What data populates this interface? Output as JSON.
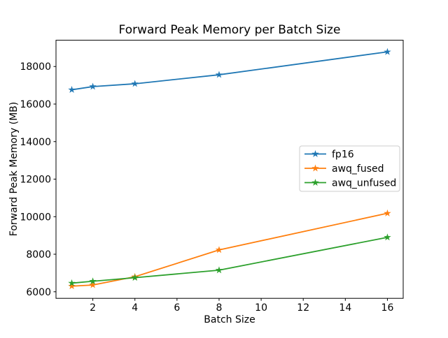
{
  "window": {
    "background_color": "#ffffff"
  },
  "chart_data": {
    "type": "line",
    "title": "Forward Peak Memory per Batch Size",
    "xlabel": "Batch Size",
    "ylabel": "Forward Peak Memory (MB)",
    "x": [
      1,
      2,
      4,
      8,
      16
    ],
    "series": [
      {
        "name": "fp16",
        "color": "#1f77b4",
        "values": [
          16760,
          16930,
          17080,
          17560,
          18780
        ]
      },
      {
        "name": "awq_fused",
        "color": "#ff7f0e",
        "values": [
          6300,
          6360,
          6800,
          8230,
          10180
        ]
      },
      {
        "name": "awq_unfused",
        "color": "#2ca02c",
        "values": [
          6460,
          6560,
          6750,
          7150,
          8900
        ]
      }
    ],
    "marker": "star",
    "line_width": 1.8,
    "xticks": [
      2,
      4,
      6,
      8,
      10,
      12,
      14,
      16
    ],
    "yticks": [
      6000,
      8000,
      10000,
      12000,
      14000,
      16000,
      18000
    ],
    "xlim": [
      0.25,
      16.75
    ],
    "ylim": [
      5650,
      19400
    ],
    "grid": false,
    "legend": {
      "position": "center-right",
      "entries": [
        "fp16",
        "awq_fused",
        "awq_unfused"
      ],
      "border_color": "#cccccc",
      "background_color": "#ffffff"
    },
    "axis_color": "#000000"
  }
}
